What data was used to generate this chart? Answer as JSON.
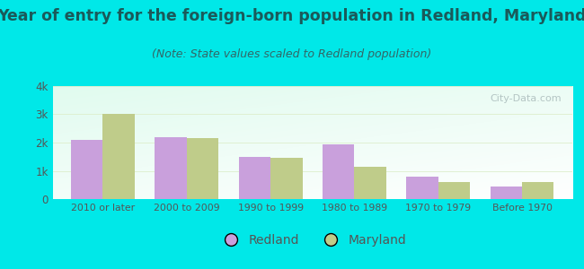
{
  "title": "Year of entry for the foreign-born population in Redland, Maryland",
  "subtitle": "(Note: State values scaled to Redland population)",
  "categories": [
    "2010 or later",
    "2000 to 2009",
    "1990 to 1999",
    "1980 to 1989",
    "1970 to 1979",
    "Before 1970"
  ],
  "redland_values": [
    2100,
    2200,
    1500,
    1950,
    800,
    450
  ],
  "maryland_values": [
    3000,
    2150,
    1450,
    1150,
    600,
    600
  ],
  "redland_color": "#c9a0dc",
  "maryland_color": "#bfcc8a",
  "background_outer": "#00e8e8",
  "ylim": [
    0,
    4000
  ],
  "yticks": [
    0,
    1000,
    2000,
    3000,
    4000
  ],
  "ytick_labels": [
    "0",
    "1k",
    "2k",
    "3k",
    "4k"
  ],
  "bar_width": 0.38,
  "legend_redland": "Redland",
  "legend_maryland": "Maryland",
  "title_fontsize": 12.5,
  "subtitle_fontsize": 9,
  "watermark": "City-Data.com"
}
